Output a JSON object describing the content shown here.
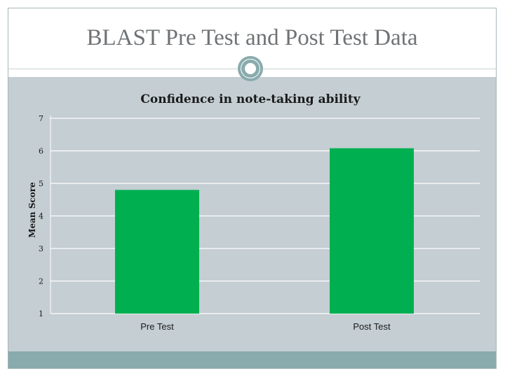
{
  "slide": {
    "title": "BLAST Pre Test and Post Test Data"
  },
  "colors": {
    "bar": "#00b050",
    "plot_bg": "#c4ced3",
    "accent": "#8aabad",
    "grid": "#ffffff"
  },
  "chart_data": {
    "type": "bar",
    "title": "Confidence in note-taking ability",
    "xlabel": "",
    "ylabel": "Mean Score",
    "categories": [
      "Pre Test",
      "Post Test"
    ],
    "values": [
      4.8,
      6.08
    ],
    "ylim": [
      1,
      7
    ],
    "yticks": [
      "1",
      "2",
      "3",
      "4",
      "5",
      "6",
      "7"
    ],
    "grid": true,
    "legend": "none"
  }
}
